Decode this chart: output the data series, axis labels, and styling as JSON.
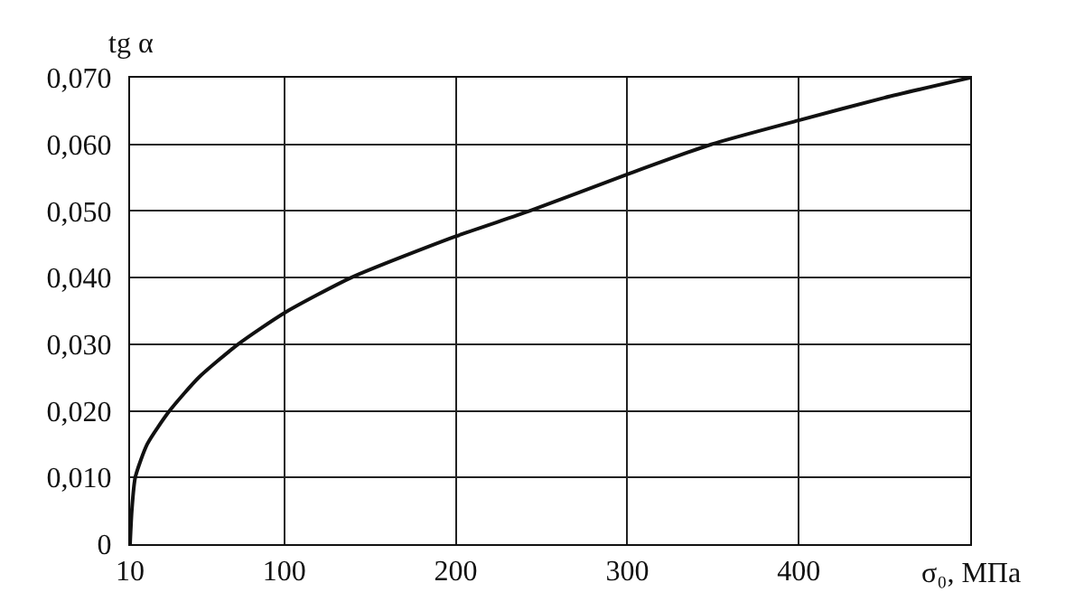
{
  "chart_data": {
    "type": "line",
    "xlabel": "σ₀, МПа",
    "ylabel": "tg α",
    "x": [
      10,
      11,
      13,
      20,
      33,
      50,
      73,
      100,
      139,
      200,
      243,
      300,
      349,
      400,
      450,
      500
    ],
    "series": [
      {
        "color": "#111111",
        "values": [
          0,
          0.005,
          0.01,
          0.015,
          0.02,
          0.025,
          0.03,
          0.0347,
          0.04,
          0.0462,
          0.05,
          0.0555,
          0.06,
          0.0636,
          0.067,
          0.07
        ]
      }
    ],
    "xlim": [
      10,
      500
    ],
    "xticks": [
      10,
      100,
      200,
      300,
      400
    ],
    "ylim": [
      0,
      0.07
    ],
    "yticks": [
      0,
      {
        "value": 0.01,
        "label": "0,010"
      },
      {
        "value": 0.02,
        "label": "0,020"
      },
      {
        "value": 0.03,
        "label": "0,030"
      },
      {
        "value": 0.04,
        "label": "0,040"
      },
      {
        "value": 0.05,
        "label": "0,050"
      },
      {
        "value": 0.06,
        "label": "0,060"
      },
      {
        "value": 0.07,
        "label": "0,070"
      }
    ],
    "grid": true,
    "marker": "none",
    "line_style": "solid"
  }
}
